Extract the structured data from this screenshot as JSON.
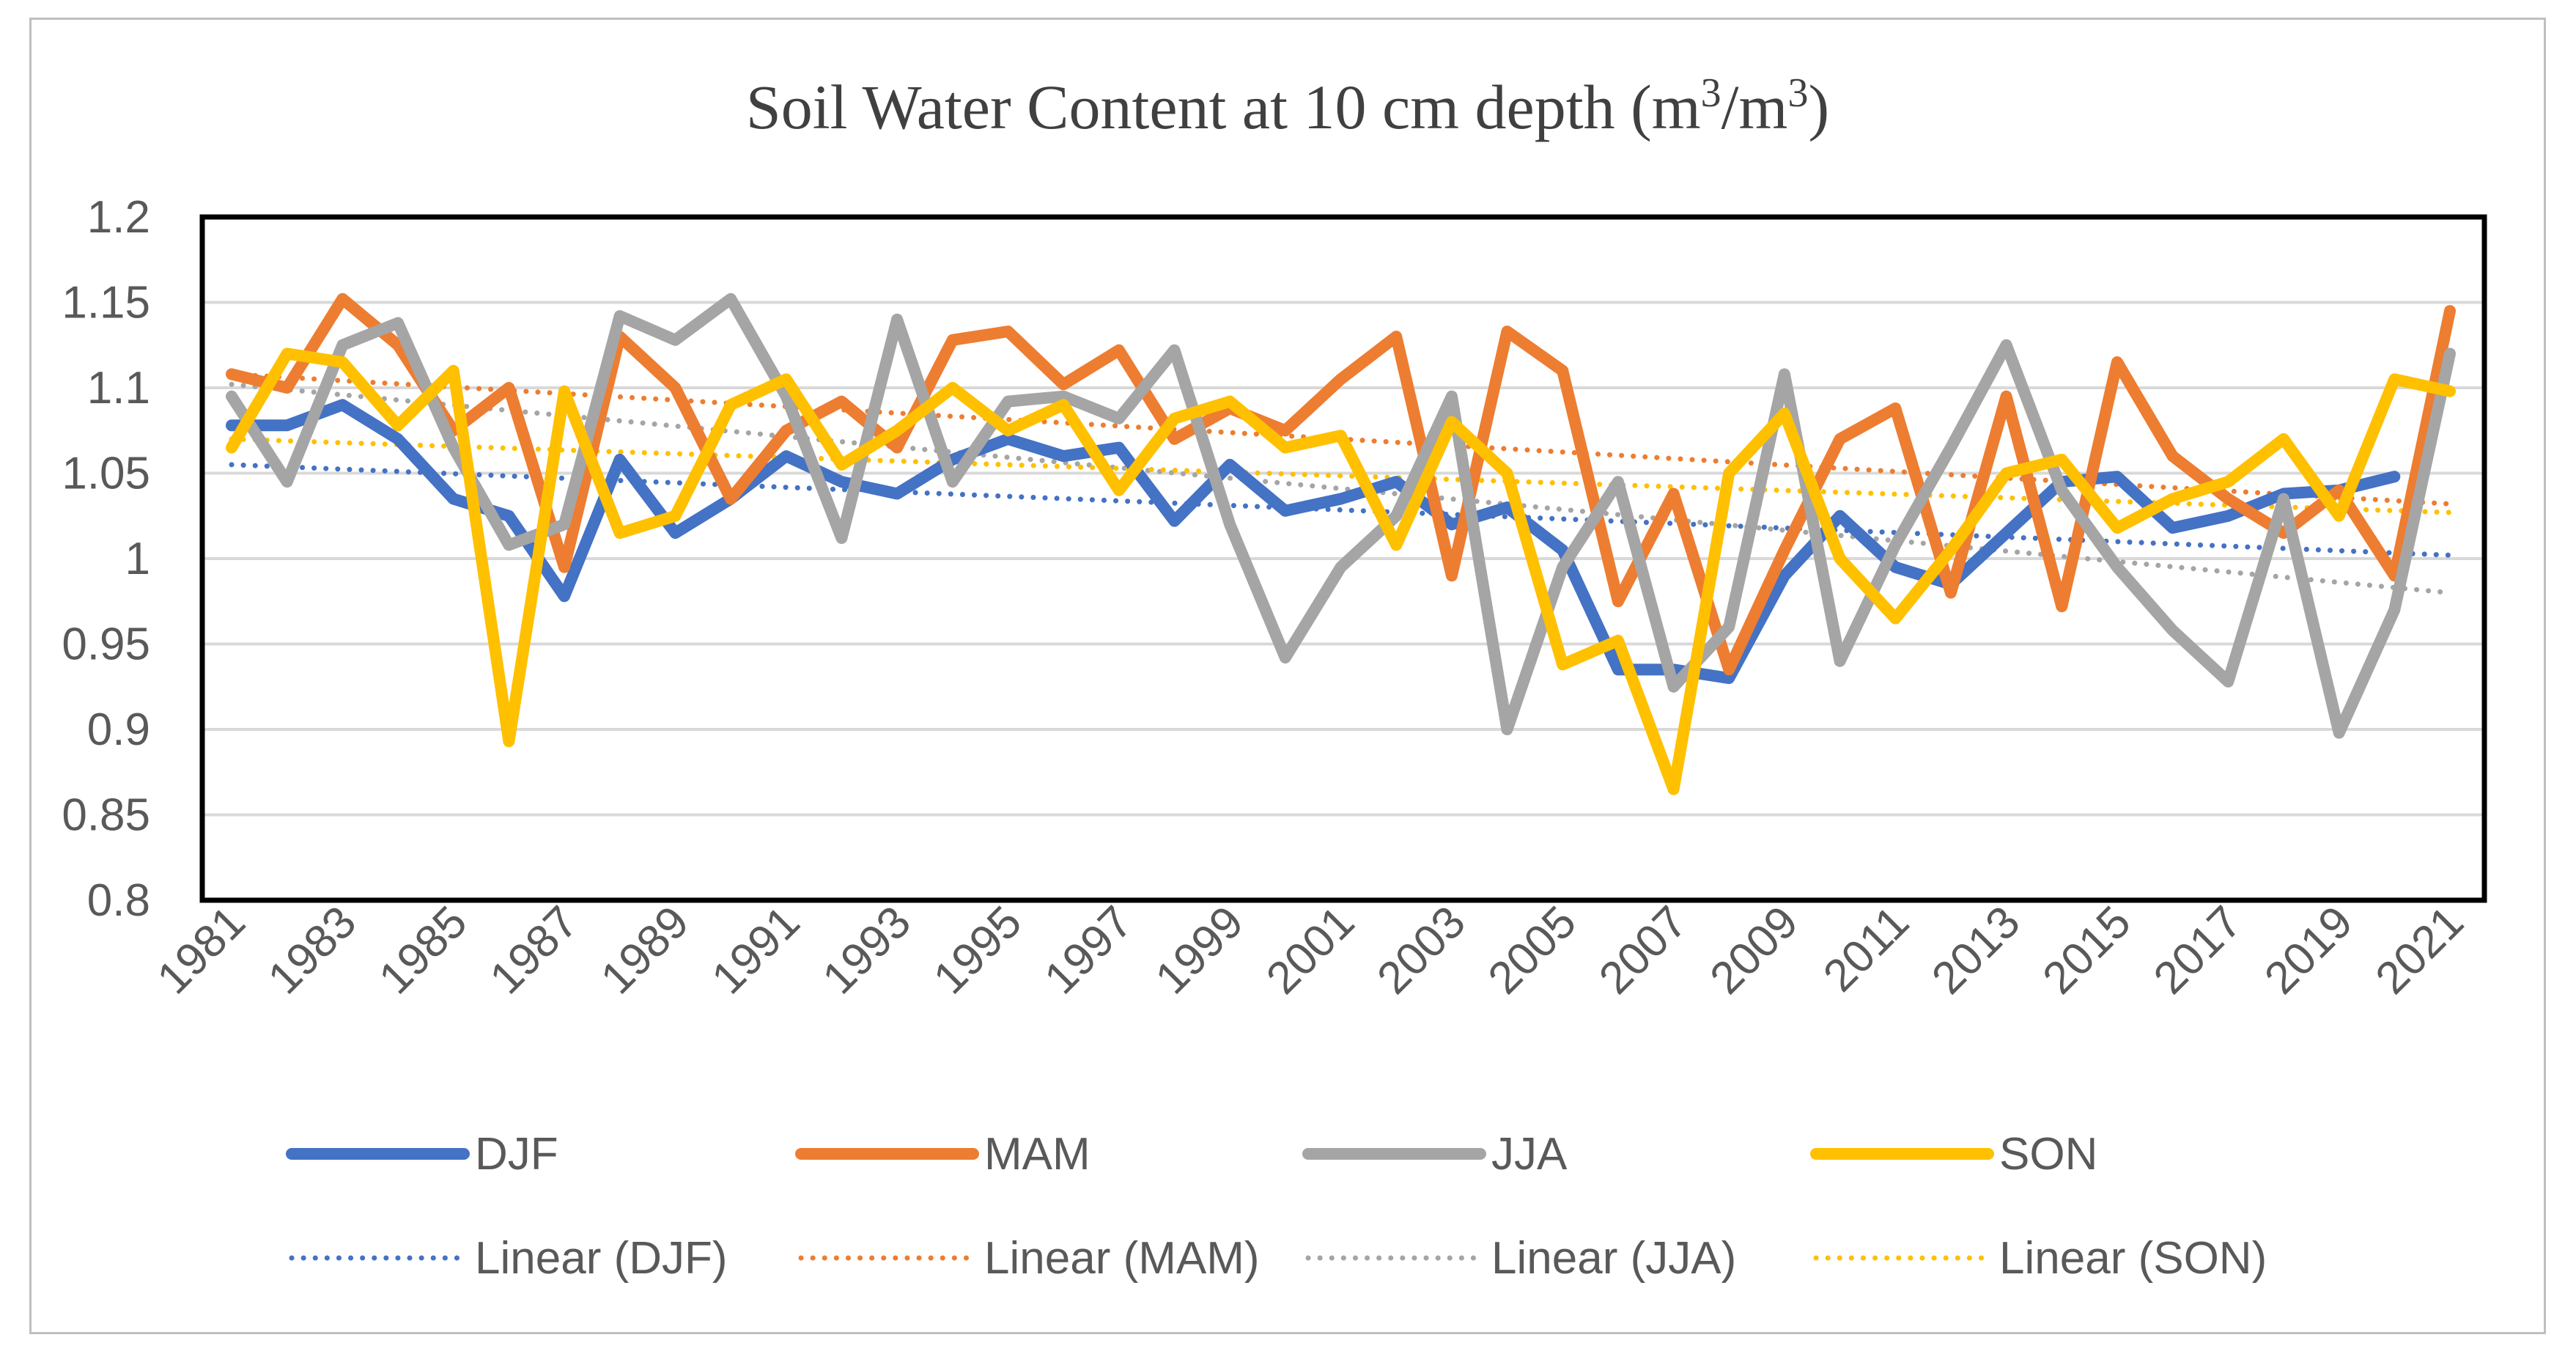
{
  "chart_data": {
    "type": "line",
    "title": "Soil Water Content at 10 cm depth (m",
    "title_sup1": "3",
    "title_mid": "/m",
    "title_sup2": "3",
    "title_end": ")",
    "xlabel": "",
    "ylabel": "",
    "ylim": [
      0.8,
      1.2
    ],
    "yticks": [
      "0.8",
      "0.85",
      "0.9",
      "0.95",
      "1",
      "1.05",
      "1.1",
      "1.15",
      "1.2"
    ],
    "x": [
      1981,
      1982,
      1983,
      1984,
      1985,
      1986,
      1987,
      1988,
      1989,
      1990,
      1991,
      1992,
      1993,
      1994,
      1995,
      1996,
      1997,
      1998,
      1999,
      2000,
      2001,
      2002,
      2003,
      2004,
      2005,
      2006,
      2007,
      2008,
      2009,
      2010,
      2011,
      2012,
      2013,
      2014,
      2015,
      2016,
      2017,
      2018,
      2019,
      2020,
      2021
    ],
    "xtick_labels": [
      "1981",
      "1983",
      "1985",
      "1987",
      "1989",
      "1991",
      "1993",
      "1995",
      "1997",
      "1999",
      "2001",
      "2003",
      "2005",
      "2007",
      "2009",
      "2011",
      "2013",
      "2015",
      "2017",
      "2019",
      "2021"
    ],
    "grid": true,
    "legend_position": "bottom",
    "series": [
      {
        "name": "DJF",
        "color": "#4472C4",
        "values": [
          1.078,
          1.078,
          1.09,
          1.07,
          1.035,
          1.025,
          0.978,
          1.058,
          1.015,
          1.035,
          1.06,
          1.045,
          1.038,
          1.058,
          1.07,
          1.06,
          1.065,
          1.022,
          1.055,
          1.028,
          1.035,
          1.045,
          1.02,
          1.03,
          1.005,
          0.935,
          0.935,
          0.93,
          0.99,
          1.025,
          0.995,
          0.985,
          1.015,
          1.045,
          1.048,
          1.018,
          1.025,
          1.038,
          1.04,
          1.048,
          null
        ]
      },
      {
        "name": "MAM",
        "color": "#ED7D31",
        "values": [
          1.108,
          1.1,
          1.152,
          1.125,
          1.075,
          1.1,
          0.995,
          1.13,
          1.1,
          1.035,
          1.075,
          1.092,
          1.065,
          1.128,
          1.133,
          1.102,
          1.122,
          1.07,
          1.088,
          1.075,
          1.105,
          1.13,
          0.99,
          1.133,
          1.11,
          0.975,
          1.038,
          0.935,
          1.005,
          1.07,
          1.088,
          0.98,
          1.095,
          0.972,
          1.115,
          1.06,
          1.035,
          1.015,
          1.04,
          0.99,
          1.145
        ]
      },
      {
        "name": "JJA",
        "color": "#A5A5A5",
        "values": [
          1.095,
          1.045,
          1.125,
          1.138,
          1.065,
          1.008,
          1.02,
          1.142,
          1.128,
          1.152,
          1.095,
          1.012,
          1.14,
          1.045,
          1.092,
          1.095,
          1.082,
          1.122,
          1.02,
          0.942,
          0.995,
          1.025,
          1.095,
          0.9,
          0.995,
          1.045,
          0.925,
          0.96,
          1.108,
          0.94,
          1.008,
          1.065,
          1.125,
          1.04,
          0.995,
          0.958,
          0.928,
          1.035,
          0.898,
          0.97,
          1.12
        ]
      },
      {
        "name": "SON",
        "color": "#FFC000",
        "values": [
          1.065,
          1.12,
          1.115,
          1.078,
          1.11,
          0.893,
          1.098,
          1.015,
          1.025,
          1.09,
          1.105,
          1.055,
          1.075,
          1.1,
          1.075,
          1.09,
          1.04,
          1.082,
          1.092,
          1.065,
          1.072,
          1.008,
          1.08,
          1.05,
          0.938,
          0.952,
          0.865,
          1.05,
          1.085,
          1.0,
          0.965,
          1.005,
          1.05,
          1.058,
          1.018,
          1.035,
          1.045,
          1.07,
          1.025,
          1.105,
          1.098
        ]
      }
    ],
    "trendlines": [
      {
        "name": "Linear (DJF)",
        "color": "#4472C4",
        "start": 1.055,
        "end": 1.002
      },
      {
        "name": "Linear (MAM)",
        "color": "#ED7D31",
        "start": 1.108,
        "end": 1.032
      },
      {
        "name": "Linear (JJA)",
        "color": "#A5A5A5",
        "start": 1.102,
        "end": 0.98
      },
      {
        "name": "Linear (SON)",
        "color": "#FFC000",
        "start": 1.07,
        "end": 1.027
      }
    ]
  }
}
